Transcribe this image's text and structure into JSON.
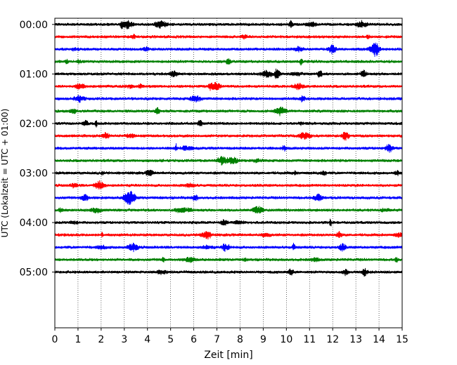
{
  "chart_data": {
    "type": "line",
    "subtype": "helicorder",
    "title": "",
    "xlabel": "Zeit  [min]",
    "ylabel": "UTC (Lokalzeit = UTC + 01:00)",
    "xlim": [
      0,
      15
    ],
    "x_ticks": [
      "0",
      "1",
      "2",
      "3",
      "4",
      "5",
      "6",
      "7",
      "8",
      "9",
      "10",
      "11",
      "12",
      "13",
      "14",
      "15"
    ],
    "y_ticks": [
      "00:00",
      "01:00",
      "02:00",
      "03:00",
      "04:00",
      "05:00"
    ],
    "y_tick_minutes": [
      0,
      60,
      120,
      180,
      240,
      300
    ],
    "y_range_minutes": [
      -7.5,
      367.5
    ],
    "x_grid": "dotted",
    "y_grid": false,
    "trace_colors": [
      "#000000",
      "#ff0000",
      "#0000ff",
      "#008000"
    ],
    "trace_interval_min": 15,
    "trace_count": 21,
    "trace_start_minutes": [
      0,
      15,
      30,
      45,
      60,
      75,
      90,
      105,
      120,
      135,
      150,
      165,
      180,
      195,
      210,
      225,
      240,
      255,
      270,
      285,
      300
    ]
  }
}
